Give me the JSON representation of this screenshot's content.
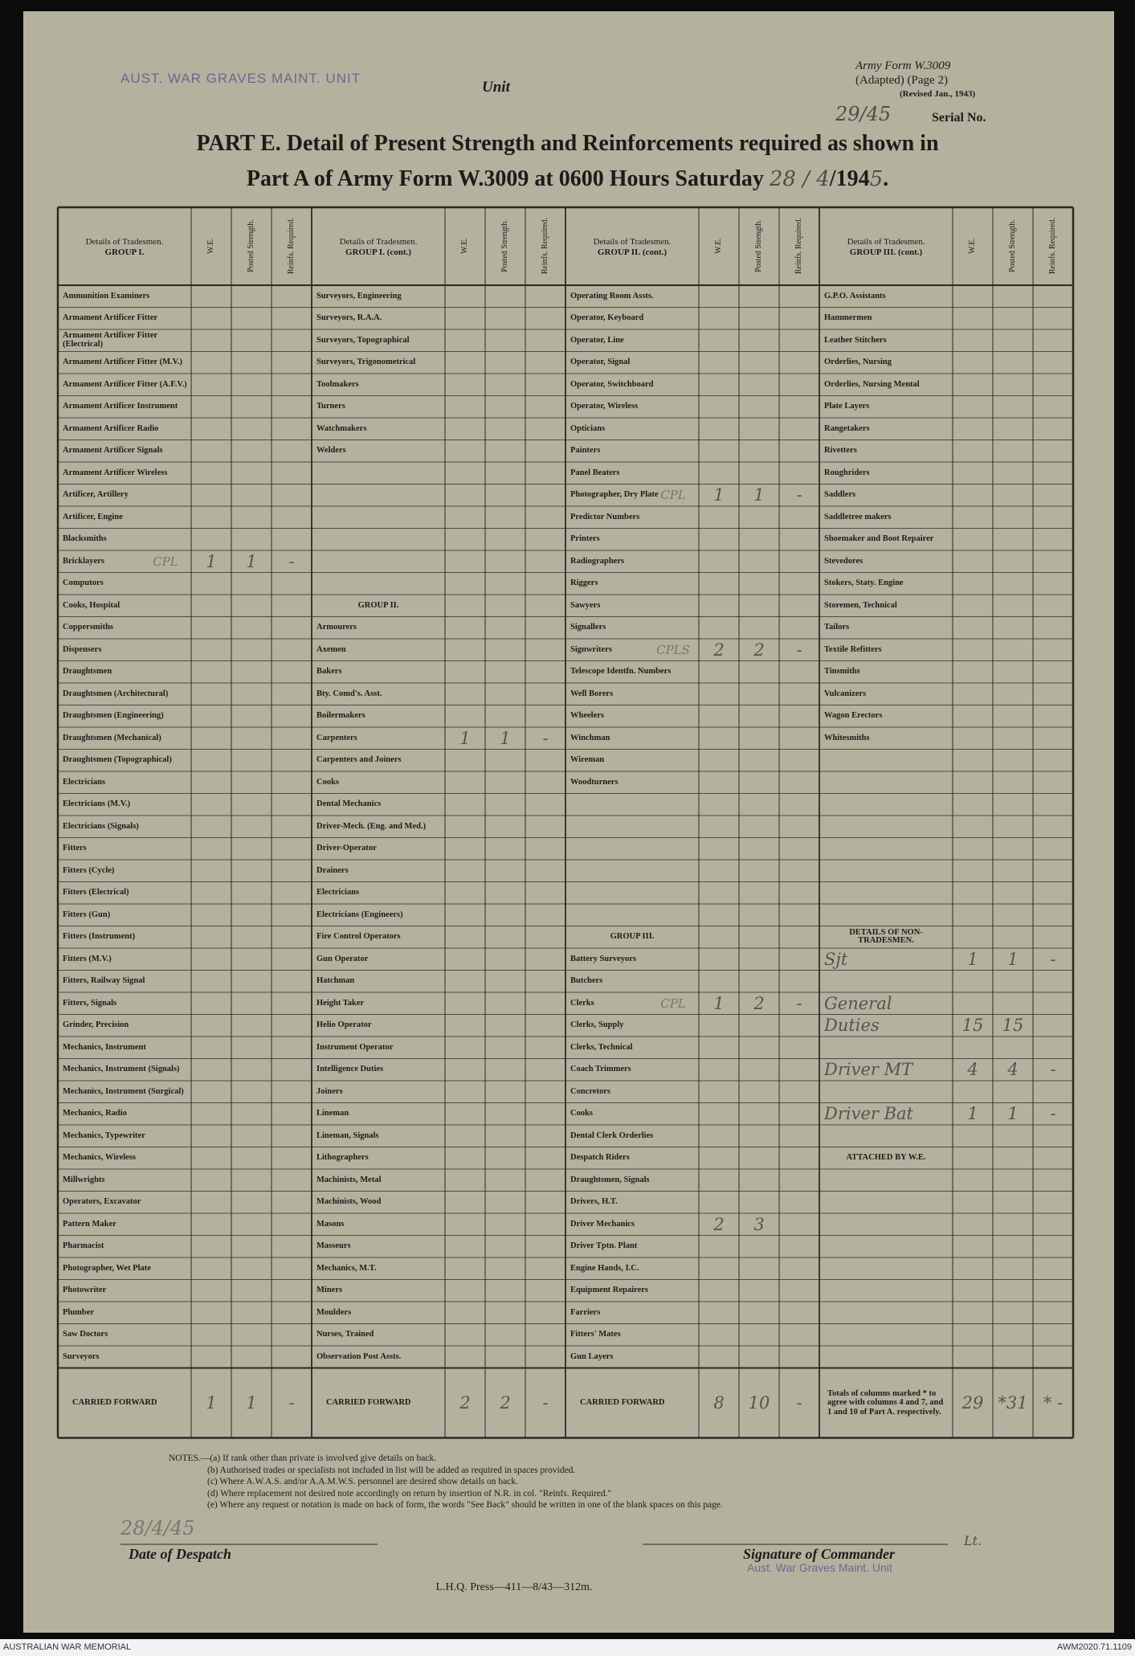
{
  "header": {
    "unit_stamp": "AUST. WAR GRAVES MAINT. UNIT",
    "unit_label": "Unit",
    "form_id": "Army Form W.3009",
    "form_adapted": "(Adapted) (Page 2)",
    "form_revised": "(Revised Jan., 1943)",
    "serial_handwritten": "29/45",
    "serial_label": "Serial No.",
    "title_line1": "PART E. Detail of Present Strength and Reinforcements required as shown in",
    "title_line2": "Part A of Army Form W.3009 at 0600 Hours Saturday",
    "date_handwritten": "28 / 4",
    "year_printed": "/194",
    "year_handwritten": "5",
    "title_end": "."
  },
  "table": {
    "columns": [
      "W.E.",
      "Posted Strength.",
      "Reinfs. Required."
    ],
    "sections": [
      {
        "title": "Details of Tradesmen.",
        "group": "GROUP I.",
        "rows": [
          {
            "label": "Ammunition Examiners"
          },
          {
            "label": "Armament Artificer Fitter"
          },
          {
            "label": "Armament Artificer Fitter (Electrical)"
          },
          {
            "label": "Armament Artificer Fitter (M.V.)"
          },
          {
            "label": "Armament Artificer Fitter (A.F.V.)"
          },
          {
            "label": "Armament Artificer Instrument"
          },
          {
            "label": "Armament Artificer Radio"
          },
          {
            "label": "Armament Artificer Signals"
          },
          {
            "label": "Armament Artificer Wireless"
          },
          {
            "label": "Artificer, Artillery"
          },
          {
            "label": "Artificer, Engine"
          },
          {
            "label": "Blacksmiths"
          },
          {
            "label": "Bricklayers",
            "rank": "CPL",
            "we": 1,
            "posted": 1,
            "reinfs": "-"
          },
          {
            "label": "Computors"
          },
          {
            "label": "Cooks, Hospital"
          },
          {
            "label": "Coppersmiths"
          },
          {
            "label": "Dispensers"
          },
          {
            "label": "Draughtsmen"
          },
          {
            "label": "Draughtsmen (Architectural)"
          },
          {
            "label": "Draughtsmen (Engineering)"
          },
          {
            "label": "Draughtsmen (Mechanical)"
          },
          {
            "label": "Draughtsmen (Topographical)"
          },
          {
            "label": "Electricians"
          },
          {
            "label": "Electricians (M.V.)"
          },
          {
            "label": "Electricians (Signals)"
          },
          {
            "label": "Fitters"
          },
          {
            "label": "Fitters (Cycle)"
          },
          {
            "label": "Fitters (Electrical)"
          },
          {
            "label": "Fitters (Gun)"
          },
          {
            "label": "Fitters (Instrument)"
          },
          {
            "label": "Fitters (M.V.)"
          },
          {
            "label": "Fitters, Railway Signal"
          },
          {
            "label": "Fitters, Signals"
          },
          {
            "label": "Grinder, Precision"
          },
          {
            "label": "Mechanics, Instrument"
          },
          {
            "label": "Mechanics, Instrument (Signals)"
          },
          {
            "label": "Mechanics, Instrument (Surgical)"
          },
          {
            "label": "Mechanics, Radio"
          },
          {
            "label": "Mechanics, Typewriter"
          },
          {
            "label": "Mechanics, Wireless"
          },
          {
            "label": "Millwrights"
          },
          {
            "label": "Operators, Excavator"
          },
          {
            "label": "Pattern Maker"
          },
          {
            "label": "Pharmacist"
          },
          {
            "label": "Photographer, Wet Plate"
          },
          {
            "label": "Photowriter"
          },
          {
            "label": "Plumber"
          },
          {
            "label": "Saw Doctors"
          },
          {
            "label": "Surveyors"
          }
        ],
        "carried_forward": {
          "label": "CARRIED FORWARD",
          "we": 1,
          "posted": 1,
          "reinfs": "-"
        }
      },
      {
        "title": "Details of Tradesmen.",
        "group": "GROUP I. (cont.)",
        "rows": [
          {
            "label": "Surveyors, Engineering"
          },
          {
            "label": "Surveyors, R.A.A."
          },
          {
            "label": "Surveyors, Topographical"
          },
          {
            "label": "Surveyors, Trigonometrical"
          },
          {
            "label": "Toolmakers"
          },
          {
            "label": "Turners"
          },
          {
            "label": "Watchmakers"
          },
          {
            "label": "Welders"
          },
          null,
          null,
          null,
          null,
          null,
          null,
          {
            "heading": "GROUP II."
          },
          {
            "label": "Armourers"
          },
          {
            "label": "Axemen"
          },
          {
            "label": "Bakers"
          },
          {
            "label": "Bty. Comd's. Asst."
          },
          {
            "label": "Boilermakers"
          },
          {
            "label": "Carpenters",
            "we": 1,
            "posted": 1,
            "reinfs": "-"
          },
          {
            "label": "Carpenters and Joiners"
          },
          {
            "label": "Cooks"
          },
          {
            "label": "Dental Mechanics"
          },
          {
            "label": "Driver-Mech. (Eng. and Med.)"
          },
          {
            "label": "Driver-Operator"
          },
          {
            "label": "Drainers"
          },
          {
            "label": "Electricians"
          },
          {
            "label": "Electricians (Engineers)"
          },
          {
            "label": "Fire Control Operators"
          },
          {
            "label": "Gun Operator"
          },
          {
            "label": "Hatchman"
          },
          {
            "label": "Height Taker"
          },
          {
            "label": "Helio Operator"
          },
          {
            "label": "Instrument Operator"
          },
          {
            "label": "Intelligence Duties"
          },
          {
            "label": "Joiners"
          },
          {
            "label": "Lineman"
          },
          {
            "label": "Lineman, Signals"
          },
          {
            "label": "Lithographers"
          },
          {
            "label": "Machinists, Metal"
          },
          {
            "label": "Machinists, Wood"
          },
          {
            "label": "Masons"
          },
          {
            "label": "Masseurs"
          },
          {
            "label": "Mechanics, M.T."
          },
          {
            "label": "Miners"
          },
          {
            "label": "Moulders"
          },
          {
            "label": "Nurses, Trained"
          },
          {
            "label": "Observation Post Assts."
          }
        ],
        "carried_forward": {
          "label": "CARRIED FORWARD",
          "we": 2,
          "posted": 2,
          "reinfs": "-"
        }
      },
      {
        "title": "Details of Tradesmen.",
        "group": "GROUP II. (cont.)",
        "rows": [
          {
            "label": "Operating Room Assts."
          },
          {
            "label": "Operator, Keyboard"
          },
          {
            "label": "Operator, Line"
          },
          {
            "label": "Operator, Signal"
          },
          {
            "label": "Operator, Switchboard"
          },
          {
            "label": "Operator, Wireless"
          },
          {
            "label": "Opticians"
          },
          {
            "label": "Painters"
          },
          {
            "label": "Panel Beaters"
          },
          {
            "label": "Photographer, Dry Plate",
            "rank": "CPL",
            "we": 1,
            "posted": 1,
            "reinfs": "-"
          },
          {
            "label": "Predictor Numbers"
          },
          {
            "label": "Printers"
          },
          {
            "label": "Radiographers"
          },
          {
            "label": "Riggers"
          },
          {
            "label": "Sawyers"
          },
          {
            "label": "Signallers"
          },
          {
            "label": "Signwriters",
            "rank": "CPLS",
            "we": 2,
            "posted": 2,
            "reinfs": "-"
          },
          {
            "label": "Telescope Identfn. Numbers"
          },
          {
            "label": "Well Borers"
          },
          {
            "label": "Wheelers"
          },
          {
            "label": "Winchman"
          },
          {
            "label": "Wireman"
          },
          {
            "label": "Woodturners"
          },
          null,
          null,
          null,
          null,
          null,
          null,
          {
            "heading": "GROUP III."
          },
          {
            "label": "Battery Surveyors"
          },
          {
            "label": "Butchers"
          },
          {
            "label": "Clerks",
            "rank": "CPL",
            "we": 1,
            "posted": 2,
            "reinfs": "-"
          },
          {
            "label": "Clerks, Supply"
          },
          {
            "label": "Clerks, Technical"
          },
          {
            "label": "Coach Trimmers"
          },
          {
            "label": "Concretors"
          },
          {
            "label": "Cooks"
          },
          {
            "label": "Dental Clerk Orderlies"
          },
          {
            "label": "Despatch Riders"
          },
          {
            "label": "Draughtsmen, Signals"
          },
          {
            "label": "Drivers, H.T."
          },
          {
            "label": "Driver Mechanics",
            "we": 2,
            "posted": 3
          },
          {
            "label": "Driver Tptn. Plant"
          },
          {
            "label": "Engine Hands, I.C."
          },
          {
            "label": "Equipment Repairers"
          },
          {
            "label": "Farriers"
          },
          {
            "label": "Fitters' Mates"
          },
          {
            "label": "Gun Layers"
          }
        ],
        "carried_forward": {
          "label": "CARRIED FORWARD",
          "we": 8,
          "posted": 10,
          "reinfs": "-"
        }
      },
      {
        "title": "Details of Tradesmen.",
        "group": "GROUP III. (cont.)",
        "rows": [
          {
            "label": "G.P.O. Assistants"
          },
          {
            "label": "Hammermen"
          },
          {
            "label": "Leather Stitchers"
          },
          {
            "label": "Orderlies, Nursing"
          },
          {
            "label": "Orderlies, Nursing Mental"
          },
          {
            "label": "Plate Layers"
          },
          {
            "label": "Rangetakers"
          },
          {
            "label": "Rivetters"
          },
          {
            "label": "Roughriders"
          },
          {
            "label": "Saddlers"
          },
          {
            "label": "Saddletree makers"
          },
          {
            "label": "Shoemaker and Boot Repairer"
          },
          {
            "label": "Stevedores"
          },
          {
            "label": "Stokers, Staty. Engine"
          },
          {
            "label": "Storemen, Technical"
          },
          {
            "label": "Tailors"
          },
          {
            "label": "Textile Refitters"
          },
          {
            "label": "Tinsmiths"
          },
          {
            "label": "Vulcanizers"
          },
          {
            "label": "Wagon Erectors"
          },
          {
            "label": "Whitesmiths"
          },
          null,
          null,
          null,
          null,
          null,
          null,
          null,
          null,
          {
            "heading": "DETAILS OF NON-TRADESMEN."
          },
          {
            "label": "Sjt",
            "handwritten": true,
            "we": 1,
            "posted": 1,
            "reinfs": "-"
          },
          null,
          {
            "label": "General",
            "handwritten": true
          },
          {
            "label": "Duties",
            "handwritten": true,
            "we": 15,
            "posted": 15
          },
          null,
          {
            "label": "Driver MT",
            "handwritten": true,
            "we": 4,
            "posted": 4,
            "reinfs": "-"
          },
          null,
          {
            "label": "Driver Bat",
            "handwritten": true,
            "we": 1,
            "posted": 1,
            "reinfs": "-"
          },
          null,
          {
            "heading": "ATTACHED BY W.E."
          },
          null,
          null,
          null,
          null,
          null,
          null,
          null,
          null,
          null
        ],
        "carried_forward": {
          "label": "Totals of columns marked * to agree with columns 4 and 7, and 1 and 10 of Part A. respectively.",
          "we": 29,
          "posted": "*31",
          "reinfs": "* -"
        }
      }
    ]
  },
  "notes": [
    "NOTES.—(a) If rank other than private is involved give details on back.",
    "(b) Authorised trades or specialists not included in list will be added as required in spaces provided.",
    "(c) Where A.W.A.S. and/or A.A.M.W.S. personnel are desired show details on back.",
    "(d) Where replacement not desired note accordingly on return by insertion of N.R. in col. \"Reinfs. Required.\"",
    "(e) Where any request or notation is made on back of form, the words \"See Back\" should be written in one of the blank spaces on this page."
  ],
  "footer": {
    "date_handwritten": "28/4/45",
    "date_label": "Date of Despatch",
    "signature_label": "Signature of Commander",
    "signature_stamp": "Aust. War Graves Maint. Unit",
    "signature_rank": "Lt.",
    "printer": "L.H.Q. Press—411—8/43—312m."
  },
  "archive": {
    "institution": "AUSTRALIAN WAR MEMORIAL",
    "accession": "AWM2020.71.1109"
  }
}
